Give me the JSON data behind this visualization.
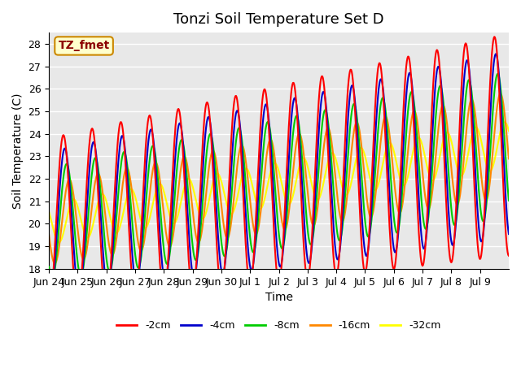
{
  "title": "Tonzi Soil Temperature Set D",
  "xlabel": "Time",
  "ylabel": "Soil Temperature (C)",
  "ylim": [
    18.0,
    28.5
  ],
  "yticks": [
    18.0,
    19.0,
    20.0,
    21.0,
    22.0,
    23.0,
    24.0,
    25.0,
    26.0,
    27.0,
    28.0
  ],
  "xtick_labels": [
    "Jun 24",
    "Jun 25",
    "Jun 26",
    "Jun 27",
    "Jun 28",
    "Jun 29",
    "Jun 30",
    "Jul 1",
    "Jul 2",
    "Jul 3",
    "Jul 4",
    "Jul 5",
    "Jul 6",
    "Jul 7",
    "Jul 8",
    "Jul 9"
  ],
  "series_colors": [
    "#ff0000",
    "#0000cc",
    "#00cc00",
    "#ff8800",
    "#ffff00"
  ],
  "series_labels": [
    "-2cm",
    "-4cm",
    "-8cm",
    "-16cm",
    "-32cm"
  ],
  "annotation_text": "TZ_fmet",
  "annotation_bg": "#ffffcc",
  "annotation_border": "#cc8800",
  "background_color": "#e8e8e8",
  "grid_color": "#ffffff",
  "title_fontsize": 13,
  "axis_fontsize": 10,
  "tick_fontsize": 9,
  "legend_fontsize": 9,
  "line_width": 1.5,
  "n_days": 16,
  "base_temp": 20.0,
  "trend_rate": 0.22
}
